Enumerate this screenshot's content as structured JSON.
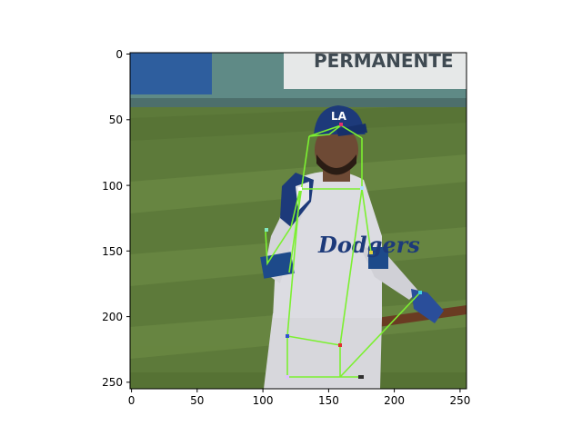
{
  "figure": {
    "x_ticks": [
      "0",
      "50",
      "100",
      "150",
      "200",
      "250"
    ],
    "y_ticks": [
      "0",
      "50",
      "100",
      "150",
      "200",
      "250"
    ]
  },
  "scene": {
    "banner_text": "PERMANENTE",
    "cap_logo": "LA",
    "jersey_text": "Dodgers"
  },
  "colors": {
    "grass": "#5d7a3a",
    "grass_light": "#6b8843",
    "wall": "#5f8a86",
    "banner_blue": "#2e5e9e",
    "uniform": "#d9d9de",
    "cap": "#1d3a7a",
    "skin": "#6e4a35",
    "skeleton": "#7cf031"
  }
}
